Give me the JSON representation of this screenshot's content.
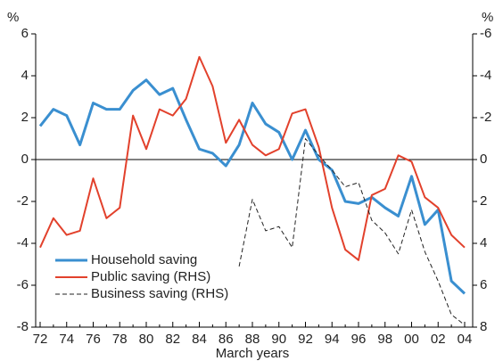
{
  "chart_data": {
    "type": "line",
    "y_unit_label": "%",
    "y2_unit_label": "%",
    "x_label": "March years",
    "categories": [
      "72",
      null,
      "74",
      null,
      "76",
      null,
      "78",
      null,
      "80",
      null,
      "82",
      null,
      "84",
      null,
      "86",
      null,
      "88",
      null,
      "90",
      null,
      "92",
      null,
      "94",
      null,
      "96",
      null,
      "98",
      null,
      "00",
      null,
      "02",
      null,
      "04"
    ],
    "ylim": [
      -8,
      6
    ],
    "yticks": [
      -8,
      -6,
      -4,
      -2,
      0,
      2,
      4,
      6
    ],
    "y2lim": [
      8,
      -6
    ],
    "y2ticks": [
      -6,
      -4,
      -2,
      0,
      2,
      4,
      6,
      8
    ],
    "zero_line": true,
    "legend": "lower-left",
    "series": [
      {
        "name": "Household saving",
        "color": "#3a8fd0",
        "line_width": 3,
        "dashed": false,
        "values": [
          1.6,
          2.4,
          2.1,
          0.7,
          2.7,
          2.4,
          2.4,
          3.3,
          3.8,
          3.1,
          3.4,
          1.9,
          0.5,
          0.3,
          -0.3,
          0.7,
          2.7,
          1.7,
          1.3,
          0.0,
          1.4,
          0.0,
          -0.5,
          -2.0,
          -2.1,
          -1.8,
          -2.3,
          -2.7,
          -0.8,
          -3.1,
          -2.4,
          -5.8,
          -6.4
        ]
      },
      {
        "name": "Public saving (RHS)",
        "color": "#e2412c",
        "line_width": 2,
        "dashed": false,
        "axis": "y2",
        "values": [
          4.2,
          2.8,
          3.6,
          3.4,
          0.9,
          2.8,
          2.3,
          -2.1,
          -0.5,
          -2.4,
          -2.1,
          -2.9,
          -4.9,
          -3.5,
          -0.8,
          -1.9,
          -0.7,
          -0.2,
          -0.5,
          -2.2,
          -2.4,
          -0.6,
          2.3,
          4.3,
          4.8,
          1.7,
          1.4,
          -0.2,
          0.1,
          1.8,
          2.3,
          3.6,
          4.2
        ]
      },
      {
        "name": "Business saving (RHS)",
        "color": "#222222",
        "line_width": 1,
        "dashed": true,
        "axis": "y2",
        "values": [
          null,
          null,
          null,
          null,
          null,
          null,
          null,
          null,
          null,
          null,
          null,
          null,
          null,
          null,
          null,
          5.1,
          1.9,
          3.4,
          3.2,
          4.2,
          -1.0,
          -0.2,
          0.5,
          1.3,
          1.1,
          2.9,
          3.5,
          4.5,
          2.4,
          4.4,
          5.8,
          7.4,
          7.9
        ]
      }
    ]
  }
}
